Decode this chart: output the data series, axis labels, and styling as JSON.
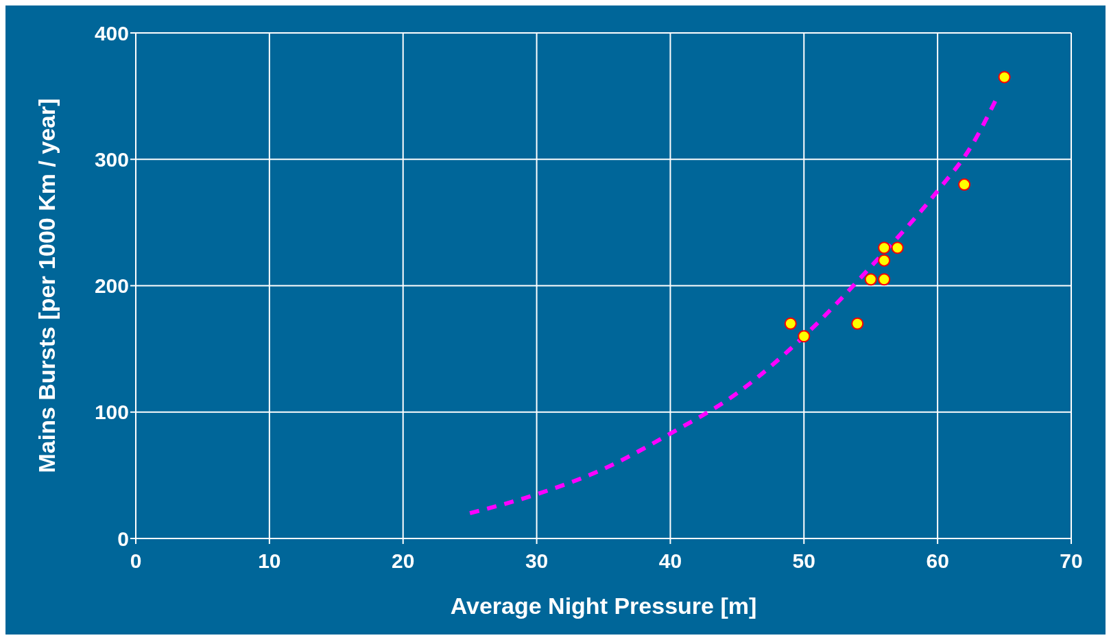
{
  "chart_data": {
    "type": "scatter",
    "xlabel": "Average Night Pressure [m]",
    "ylabel": "Mains Bursts [per 1000 Km / year]",
    "xlim": [
      0,
      70
    ],
    "xticks": [
      0,
      10,
      20,
      30,
      40,
      50,
      60,
      70
    ],
    "ylim": [
      0,
      400
    ],
    "yticks": [
      0,
      100,
      200,
      300,
      400
    ],
    "grid": true,
    "legend": false,
    "series": [
      {
        "color": "#ffff00",
        "marker": "circle",
        "x": [
          49,
          50,
          54,
          55,
          56,
          56,
          56,
          57,
          62,
          65
        ],
        "values": [
          170,
          160,
          170,
          205,
          205,
          220,
          230,
          230,
          280,
          365
        ]
      },
      {
        "type": "line",
        "color": "#ff00ff",
        "marker": "none",
        "line_style": "dashed",
        "x": [
          25,
          30,
          35,
          40,
          45,
          50,
          55,
          60,
          62.5,
          64.5
        ],
        "values": [
          20,
          35,
          55,
          83,
          115,
          160,
          215,
          275,
          310,
          350
        ]
      }
    ]
  }
}
